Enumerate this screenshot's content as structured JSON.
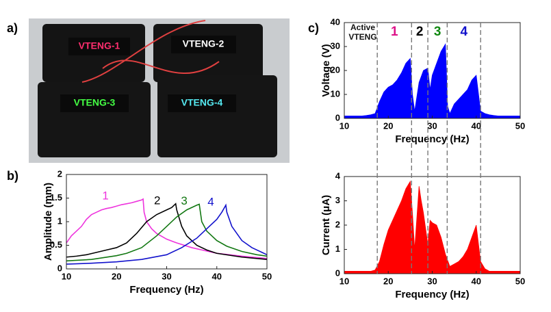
{
  "panel_labels": [
    "a)",
    "b)",
    "c)"
  ],
  "photo": {
    "labels": [
      {
        "text": "VTENG-1",
        "color": "#ff2e6e"
      },
      {
        "text": "VTENG-2",
        "color": "#ffffff"
      },
      {
        "text": "VTENG-3",
        "color": "#44ff44"
      },
      {
        "text": "VTENG-4",
        "color": "#55e8f0"
      }
    ]
  },
  "chart_data": [
    {
      "type": "line",
      "xlabel": "Frequency (Hz)",
      "ylabel": "Amplitude (mm)",
      "xlim": [
        10,
        50
      ],
      "ylim": [
        0,
        2
      ],
      "xticks": [
        10,
        20,
        30,
        40,
        50
      ],
      "yticks": [
        0,
        0.5,
        1,
        1.5,
        2
      ],
      "series": [
        {
          "name": "1",
          "color": "#ee33dd",
          "x": [
            10,
            11,
            12,
            13,
            14,
            15,
            16,
            17,
            18,
            19,
            20,
            21,
            22,
            23,
            24,
            25,
            25.3,
            25.5,
            26,
            27,
            28,
            30,
            32,
            35,
            40,
            45,
            50
          ],
          "values": [
            0.55,
            0.7,
            0.8,
            0.9,
            1.05,
            1.15,
            1.2,
            1.25,
            1.28,
            1.3,
            1.33,
            1.36,
            1.38,
            1.4,
            1.43,
            1.46,
            1.48,
            1.2,
            1.0,
            0.85,
            0.75,
            0.63,
            0.55,
            0.45,
            0.33,
            0.27,
            0.22
          ]
        },
        {
          "name": "2",
          "color": "#000000",
          "x": [
            10,
            12,
            14,
            16,
            18,
            20,
            22,
            24,
            26,
            28,
            30,
            31,
            31.8,
            32,
            33,
            34,
            36,
            38,
            40,
            45,
            50
          ],
          "values": [
            0.25,
            0.27,
            0.3,
            0.35,
            0.4,
            0.45,
            0.55,
            0.75,
            1.0,
            1.15,
            1.25,
            1.3,
            1.38,
            1.25,
            0.9,
            0.7,
            0.5,
            0.4,
            0.33,
            0.25,
            0.2
          ]
        },
        {
          "name": "3",
          "color": "#117711",
          "x": [
            10,
            15,
            20,
            22,
            25,
            28,
            30,
            32,
            34,
            36,
            36.5,
            37,
            38,
            40,
            42,
            45,
            48,
            50
          ],
          "values": [
            0.17,
            0.2,
            0.28,
            0.33,
            0.45,
            0.7,
            0.9,
            1.1,
            1.25,
            1.35,
            1.37,
            1.0,
            0.8,
            0.6,
            0.48,
            0.37,
            0.3,
            0.27
          ]
        },
        {
          "name": "4",
          "color": "#1111cc",
          "x": [
            10,
            15,
            20,
            25,
            30,
            33,
            36,
            38,
            40,
            41,
            41.8,
            42,
            43,
            45,
            47,
            50
          ],
          "values": [
            0.1,
            0.12,
            0.15,
            0.2,
            0.3,
            0.45,
            0.65,
            0.85,
            1.05,
            1.2,
            1.35,
            1.2,
            0.9,
            0.6,
            0.45,
            0.3
          ]
        }
      ]
    },
    {
      "type": "area",
      "xlabel": "Frequency (Hz)",
      "ylabel": "Voltage (V)",
      "color": "#0000ff",
      "xlim": [
        10,
        50
      ],
      "ylim": [
        0,
        40
      ],
      "xticks": [
        10,
        20,
        30,
        40,
        50
      ],
      "yticks": [
        0,
        10,
        20,
        30,
        40
      ],
      "x": [
        10,
        11,
        12,
        13,
        14,
        15,
        16,
        17,
        18,
        19,
        20,
        21,
        22,
        23,
        24,
        25,
        25.5,
        26,
        27,
        28,
        29,
        29.5,
        30,
        31,
        32,
        33,
        33.5,
        34,
        35,
        36,
        37,
        38,
        39,
        40,
        41,
        42,
        43,
        44,
        45,
        46,
        47,
        48,
        49,
        50
      ],
      "values": [
        1,
        1,
        1,
        1,
        1,
        1.2,
        1.5,
        2,
        7,
        11,
        13,
        14,
        16,
        19,
        23,
        25,
        10,
        3,
        15,
        20,
        21,
        12,
        18,
        23,
        28,
        31,
        5,
        2,
        6,
        8,
        10,
        12,
        16,
        18,
        3,
        2,
        1.5,
        1.2,
        1,
        1,
        1,
        1,
        1,
        1
      ],
      "vlines": [
        17.5,
        25.3,
        29,
        33.4,
        41
      ],
      "label_lines": [
        "Active",
        "VTENG"
      ],
      "segment_labels": [
        {
          "text": "1",
          "color": "#dd1188"
        },
        {
          "text": "2",
          "color": "#000000"
        },
        {
          "text": "3",
          "color": "#118811"
        },
        {
          "text": "4",
          "color": "#1111cc"
        }
      ]
    },
    {
      "type": "area",
      "xlabel": "Frequency (Hz)",
      "ylabel": "Current (μA)",
      "color": "#ff0000",
      "xlim": [
        10,
        50
      ],
      "ylim": [
        0,
        4
      ],
      "xticks": [
        10,
        20,
        30,
        40,
        50
      ],
      "yticks": [
        0,
        1,
        2,
        3,
        4
      ],
      "x": [
        10,
        12,
        14,
        16,
        17,
        18,
        19,
        20,
        21,
        22,
        23,
        24,
        25,
        25.5,
        26,
        27,
        27.5,
        28,
        29,
        29.5,
        30,
        31,
        32,
        33,
        34,
        35,
        36,
        37,
        38,
        39,
        40,
        41,
        42,
        43,
        45,
        47,
        50
      ],
      "values": [
        0.1,
        0.1,
        0.1,
        0.1,
        0.15,
        0.5,
        1.2,
        1.8,
        2.2,
        2.6,
        3,
        3.5,
        3.8,
        2.5,
        1,
        3.6,
        3,
        2.5,
        1.2,
        2.2,
        2.1,
        2,
        1.5,
        0.8,
        0.3,
        0.4,
        0.5,
        0.7,
        1,
        1.5,
        2,
        0.5,
        0.2,
        0.1,
        0.1,
        0.1,
        0.1
      ]
    }
  ]
}
